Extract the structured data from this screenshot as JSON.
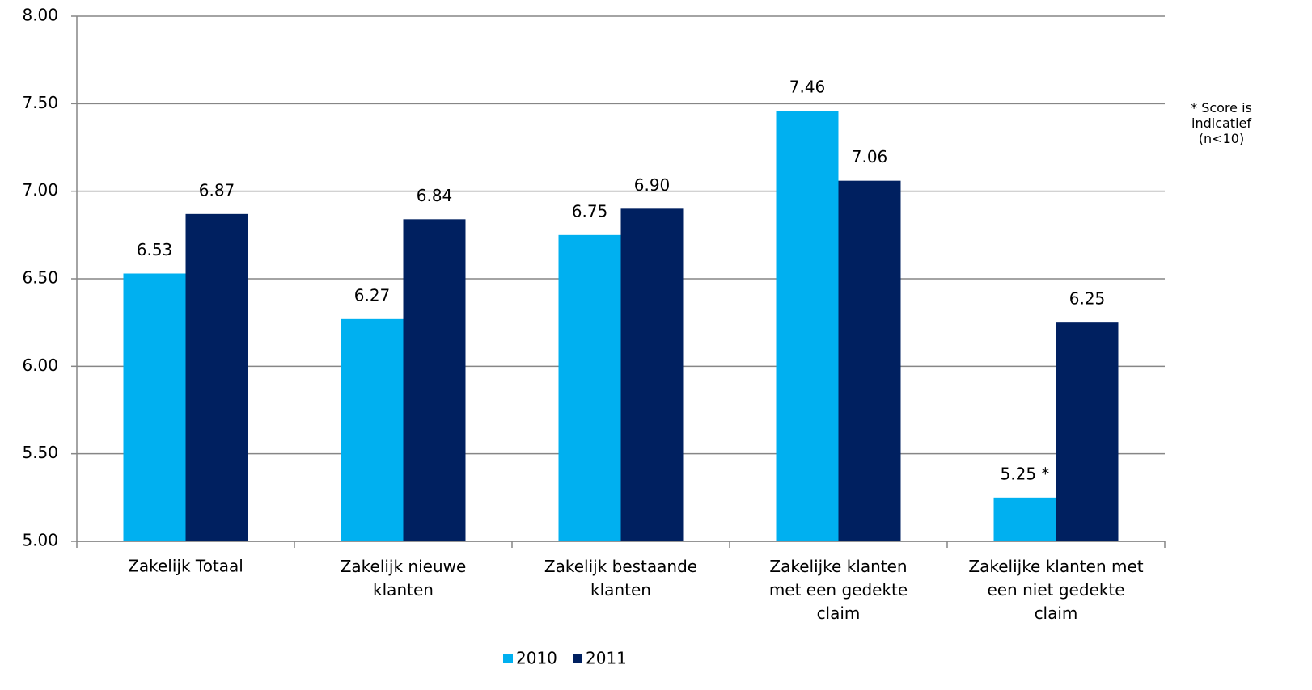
{
  "chart_data": {
    "type": "bar",
    "categories": [
      "Zakelijk Totaal",
      "Zakelijk nieuwe\nklanten",
      "Zakelijk bestaande\nklanten",
      "Zakelijke klanten\nmet een gedekte\nclaim",
      "Zakelijke klanten met\neen niet gedekte\nclaim"
    ],
    "series": [
      {
        "name": "2010",
        "color": "#00b0f0",
        "values": [
          6.53,
          6.27,
          6.75,
          7.46,
          5.25
        ],
        "value_labels": [
          "6.53",
          "6.27",
          "6.75",
          "7.46",
          "5.25 *"
        ]
      },
      {
        "name": "2011",
        "color": "#002060",
        "values": [
          6.87,
          6.84,
          6.9,
          7.06,
          6.25
        ],
        "value_labels": [
          "6.87",
          "6.84",
          "6.90",
          "7.06",
          "6.25"
        ]
      }
    ],
    "ylim": [
      5,
      8
    ],
    "yticks": [
      {
        "value": 5,
        "label": "5.00"
      },
      {
        "value": 5.5,
        "label": "5.50"
      },
      {
        "value": 6,
        "label": "6.00"
      },
      {
        "value": 6.5,
        "label": "6.50"
      },
      {
        "value": 7,
        "label": "7.00"
      },
      {
        "value": 7.5,
        "label": "7.50"
      },
      {
        "value": 8,
        "label": "8.00"
      }
    ],
    "grid": true,
    "legend": "bottom",
    "annotation": "* Score is\nindicatief\n(n<10)"
  }
}
